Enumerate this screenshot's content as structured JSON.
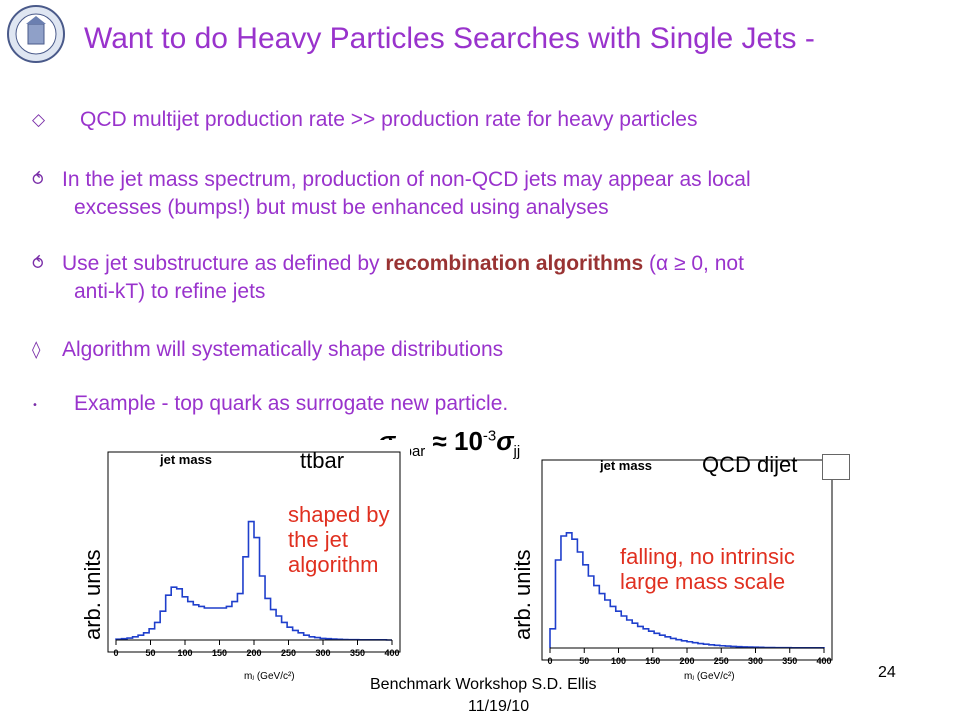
{
  "slide": {
    "title": "Want to do Heavy Particles Searches with Single Jets -",
    "bullets": [
      {
        "icon": "diamond-bullet-icon",
        "text": "QCD multijet production rate >> production rate for heavy particles"
      },
      {
        "icon": "arrow-bullet-icon",
        "line1": "In the jet mass spectrum, production of non-QCD jets may appear as local",
        "line2": "excesses (bumps!) but must be enhanced using analyses"
      },
      {
        "icon": "arrow-bullet-icon",
        "pre": "Use jet substructure as defined by ",
        "bold": "recombination algorithms",
        "post": " (α ≥ 0, not",
        "line2": "anti-kT) to refine jets"
      },
      {
        "icon": "diamond-bullet-icon",
        "text": "Algorithm will systematically shape distributions"
      },
      {
        "icon": "dot-bullet-icon",
        "text": "Example - top quark as surrogate new particle."
      }
    ],
    "sigma": {
      "base": "σ",
      "sub1": "ttbar",
      "approx": " ≈ 10",
      "sup": "-3",
      "base2": "σ",
      "sub2": "jj"
    },
    "footer": {
      "line1": "Benchmark Workshop    S.D. Ellis",
      "line2": "11/19/10"
    },
    "page_number": "24"
  },
  "plots": [
    {
      "plot_title": "jet mass",
      "label": "ttbar",
      "annotation": [
        "shaped by",
        "the jet",
        "algorithm"
      ],
      "ylabel": "arb. units",
      "xlabel": "mⱼ (GeV/c²)",
      "xticks": [
        "0",
        "50",
        "100",
        "150",
        "200",
        "250",
        "300",
        "350",
        "400"
      ]
    },
    {
      "plot_title": "jet mass",
      "label": "QCD dijet",
      "annotation": [
        "falling, no intrinsic",
        "large mass scale"
      ],
      "ylabel": "arb. units",
      "xlabel": "mⱼ (GeV/c²)",
      "xticks": [
        "0",
        "50",
        "100",
        "150",
        "200",
        "250",
        "300",
        "350",
        "400"
      ]
    }
  ],
  "chart_data": [
    {
      "type": "bar",
      "title": "jet mass",
      "series_label": "ttbar",
      "xlabel": "m_J (GeV/c^2)",
      "ylabel": "arb. units",
      "xlim": [
        0,
        400
      ],
      "ylim": [
        0,
        1
      ],
      "grid": false,
      "bin_width": 8,
      "values": [
        0.005,
        0.008,
        0.012,
        0.02,
        0.03,
        0.045,
        0.07,
        0.11,
        0.18,
        0.28,
        0.33,
        0.32,
        0.27,
        0.24,
        0.22,
        0.21,
        0.2,
        0.2,
        0.2,
        0.2,
        0.21,
        0.24,
        0.29,
        0.52,
        0.74,
        0.64,
        0.4,
        0.26,
        0.19,
        0.15,
        0.11,
        0.08,
        0.06,
        0.045,
        0.03,
        0.02,
        0.015,
        0.01,
        0.008,
        0.006,
        0.004,
        0.003,
        0.002,
        0.002,
        0.001,
        0.001,
        0.001,
        0.001,
        0.001,
        0.0
      ]
    },
    {
      "type": "bar",
      "title": "jet mass",
      "series_label": "QCD dijet",
      "xlabel": "m_J (GeV/c^2)",
      "ylabel": "arb. units",
      "xlim": [
        0,
        400
      ],
      "ylim": [
        0,
        1
      ],
      "grid": false,
      "bin_width": 8,
      "values": [
        0.12,
        0.55,
        0.7,
        0.72,
        0.68,
        0.6,
        0.52,
        0.45,
        0.39,
        0.34,
        0.3,
        0.26,
        0.23,
        0.2,
        0.175,
        0.155,
        0.135,
        0.12,
        0.105,
        0.092,
        0.08,
        0.07,
        0.06,
        0.052,
        0.045,
        0.039,
        0.033,
        0.028,
        0.024,
        0.02,
        0.017,
        0.014,
        0.012,
        0.01,
        0.008,
        0.007,
        0.006,
        0.005,
        0.004,
        0.003,
        0.003,
        0.002,
        0.002,
        0.002,
        0.001,
        0.001,
        0.001,
        0.001,
        0.001,
        0.001
      ]
    }
  ],
  "colors": {
    "title": "#9933cc",
    "bullet_text": "#9933cc",
    "bold": "#993333",
    "annotation": "#e03020",
    "histogram": "#1f3fcc"
  }
}
